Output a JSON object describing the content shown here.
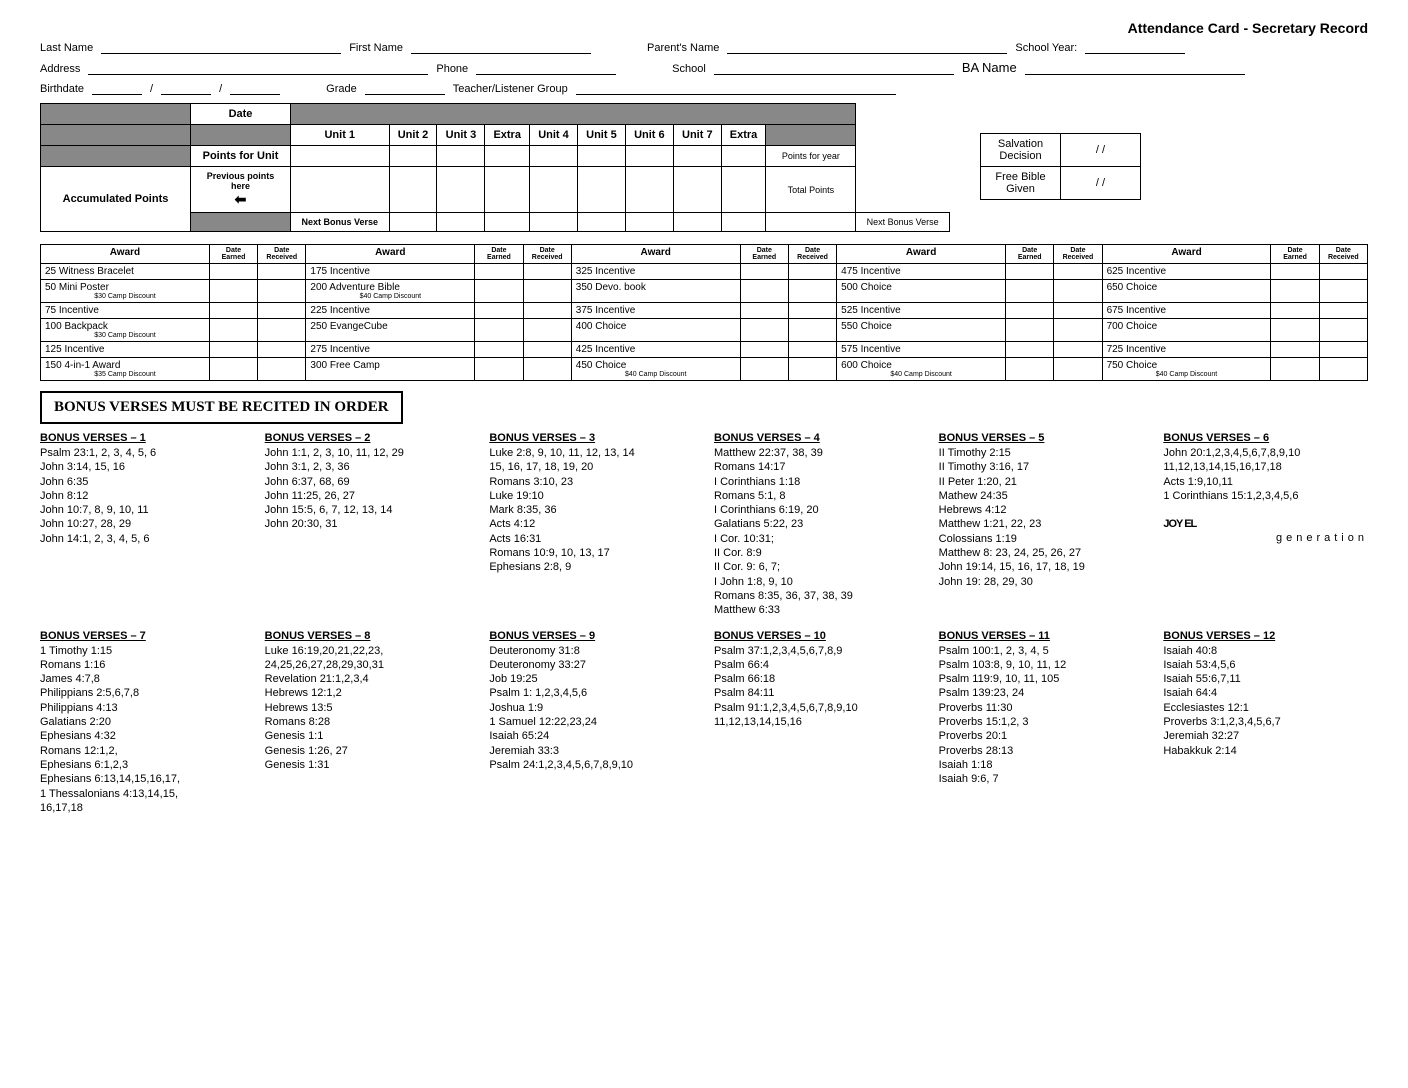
{
  "header": {
    "title": "Attendance Card - Secretary Record"
  },
  "form": {
    "last_name": "Last Name",
    "first_name": "First Name",
    "parents_name": "Parent's Name",
    "school_year": "School Year:",
    "address": "Address",
    "phone": "Phone",
    "school": "School",
    "ba_name": "BA Name",
    "birthdate": "Birthdate",
    "grade": "Grade",
    "teacher_group": "Teacher/Listener Group"
  },
  "points": {
    "date": "Date",
    "units": [
      "Unit 1",
      "Unit 2",
      "Unit 3",
      "Extra",
      "Unit 4",
      "Unit 5",
      "Unit 6",
      "Unit 7",
      "Extra"
    ],
    "points_for_unit": "Points for Unit",
    "points_for_year": "Points for year",
    "accumulated": "Accumulated Points",
    "previous_points": "Previous points here",
    "total_points": "Total Points",
    "next_bonus": "Next Bonus Verse",
    "next_bonus2": "Next Bonus Verse"
  },
  "side": {
    "salvation": "Salvation Decision",
    "bible": "Free Bible Given",
    "slash": "/    /"
  },
  "awards_headers": {
    "award": "Award",
    "date_earned": "Date Earned",
    "date_received": "Date Received"
  },
  "awards": [
    [
      {
        "t": "25 Witness Bracelet"
      },
      {
        "t": "50 Mini Poster",
        "s": "$30 Camp Discount"
      },
      {
        "t": "75 Incentive"
      },
      {
        "t": "100 Backpack",
        "s": "$30 Camp Discount"
      },
      {
        "t": "125 Incentive"
      },
      {
        "t": "150 4-in-1 Award",
        "s": "$35 Camp Discount"
      }
    ],
    [
      {
        "t": "175 Incentive"
      },
      {
        "t": "200 Adventure Bible",
        "s": "$40 Camp Discount"
      },
      {
        "t": "225 Incentive"
      },
      {
        "t": "250 EvangeCube"
      },
      {
        "t": "275 Incentive"
      },
      {
        "t": "300 Free Camp"
      }
    ],
    [
      {
        "t": "325 Incentive"
      },
      {
        "t": "350 Devo. book"
      },
      {
        "t": "375 Incentive"
      },
      {
        "t": "400 Choice"
      },
      {
        "t": "425 Incentive"
      },
      {
        "t": "450 Choice",
        "s": "$40 Camp Discount"
      }
    ],
    [
      {
        "t": "475 Incentive"
      },
      {
        "t": "500 Choice"
      },
      {
        "t": "525 Incentive"
      },
      {
        "t": "550 Choice"
      },
      {
        "t": "575 Incentive"
      },
      {
        "t": "600 Choice",
        "s": "$40 Camp Discount"
      }
    ],
    [
      {
        "t": "625 Incentive"
      },
      {
        "t": "650 Choice"
      },
      {
        "t": "675 Incentive"
      },
      {
        "t": "700 Choice"
      },
      {
        "t": "725 Incentive"
      },
      {
        "t": "750 Choice",
        "s": "$40 Camp Discount"
      }
    ]
  ],
  "notice": "BONUS VERSES MUST BE RECITED IN ORDER",
  "verse_groups": [
    {
      "title": "BONUS VERSES – 1",
      "lines": [
        "Psalm 23:1, 2, 3, 4, 5, 6",
        "John 3:14, 15, 16",
        "John 6:35",
        "John 8:12",
        "John 10:7, 8, 9, 10, 11",
        "John 10:27, 28, 29",
        "John 14:1, 2, 3, 4, 5, 6"
      ]
    },
    {
      "title": "BONUS VERSES – 2",
      "lines": [
        "John 1:1, 2, 3, 10, 11, 12, 29",
        "John 3:1, 2, 3, 36",
        "John 6:37, 68, 69",
        "John 11:25, 26, 27",
        "John 15:5, 6, 7, 12, 13, 14",
        "John 20:30, 31"
      ]
    },
    {
      "title": "BONUS VERSES – 3",
      "lines": [
        "Luke 2:8, 9, 10, 11, 12, 13, 14",
        "15, 16, 17, 18, 19, 20",
        "Romans 3:10, 23",
        "Luke 19:10",
        "Mark 8:35, 36",
        "Acts 4:12",
        "Acts 16:31",
        "Romans 10:9, 10, 13, 17",
        "Ephesians 2:8, 9"
      ]
    },
    {
      "title": "BONUS VERSES – 4",
      "lines": [
        "Matthew 22:37, 38, 39",
        "Romans 14:17",
        "I Corinthians 1:18",
        "Romans 5:1, 8",
        "I Corinthians 6:19, 20",
        "Galatians 5:22, 23",
        "I Cor. 10:31;",
        "II Cor. 8:9",
        "II Cor. 9: 6, 7;",
        "I John 1:8, 9, 10",
        "Romans 8:35, 36, 37, 38, 39",
        "Matthew 6:33"
      ]
    },
    {
      "title": "BONUS VERSES – 5",
      "lines": [
        "II Timothy 2:15",
        "II Timothy 3:16, 17",
        "II Peter 1:20, 21",
        "Mathew 24:35",
        "Hebrews 4:12",
        "Matthew 1:21, 22, 23",
        "Colossians 1:19",
        "Matthew 8: 23, 24, 25, 26, 27",
        "John 19:14, 15, 16, 17, 18, 19",
        "John 19: 28, 29, 30"
      ]
    },
    {
      "title": "BONUS VERSES – 6",
      "lines": [
        "John 20:1,2,3,4,5,6,7,8,9,10",
        "11,12,13,14,15,16,17,18",
        "Acts 1:9,10,11",
        "1 Corinthians 15:1,2,3,4,5,6"
      ]
    },
    {
      "title": "BONUS VERSES – 7",
      "lines": [
        "1 Timothy 1:15",
        "Romans 1:16",
        "James 4:7,8",
        "Philippians 2:5,6,7,8",
        "Philippians 4:13",
        "Galatians 2:20",
        "Ephesians 4:32",
        "Romans 12:1,2,",
        "Ephesians 6:1,2,3",
        "Ephesians 6:13,14,15,16,17,",
        "1 Thessalonians 4:13,14,15,",
        "16,17,18"
      ]
    },
    {
      "title": "BONUS VERSES – 8",
      "lines": [
        "Luke 16:19,20,21,22,23,",
        "24,25,26,27,28,29,30,31",
        "Revelation 21:1,2,3,4",
        "Hebrews 12:1,2",
        "Hebrews 13:5",
        "Romans 8:28",
        "Genesis 1:1",
        "Genesis 1:26, 27",
        "Genesis 1:31"
      ]
    },
    {
      "title": "BONUS VERSES – 9",
      "lines": [
        "Deuteronomy 31:8",
        "Deuteronomy 33:27",
        "Job 19:25",
        "Psalm 1: 1,2,3,4,5,6",
        "Joshua 1:9",
        "1 Samuel 12:22,23,24",
        "Isaiah 65:24",
        "Jeremiah 33:3",
        "Psalm 24:1,2,3,4,5,6,7,8,9,10"
      ]
    },
    {
      "title": "BONUS VERSES – 10",
      "lines": [
        "Psalm 37:1,2,3,4,5,6,7,8,9",
        "Psalm 66:4",
        "Psalm 66:18",
        "Psalm 84:11",
        "Psalm 91:1,2,3,4,5,6,7,8,9,10",
        "11,12,13,14,15,16"
      ]
    },
    {
      "title": "BONUS VERSES – 11",
      "lines": [
        "Psalm 100:1, 2, 3, 4, 5",
        "Psalm 103:8, 9, 10, 11, 12",
        "Psalm 119:9, 10, 11, 105",
        "Psalm 139:23, 24",
        "Proverbs 11:30",
        "Proverbs 15:1,2, 3",
        "Proverbs 20:1",
        "Proverbs 28:13",
        "Isaiah 1:18",
        "Isaiah 9:6, 7"
      ]
    },
    {
      "title": "BONUS VERSES – 12",
      "lines": [
        "Isaiah 40:8",
        "Isaiah 53:4,5,6",
        "Isaiah 55:6,7,11",
        "Isaiah 64:4",
        "Ecclesiastes 12:1",
        "Proverbs 3:1,2,3,4,5,6,7",
        "Jeremiah 32:27",
        "Habakkuk 2:14"
      ]
    }
  ],
  "logo": {
    "main": "JOY EL",
    "sub": "generation"
  }
}
